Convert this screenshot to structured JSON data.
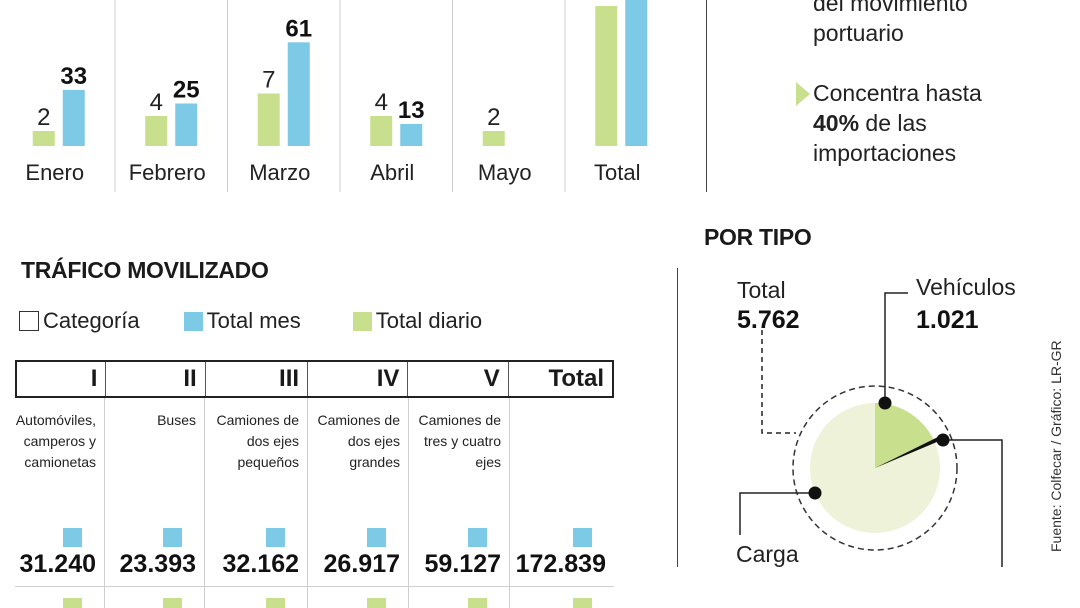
{
  "colors": {
    "green": "#c8df8d",
    "blue": "#7ccae5",
    "pie_fill": "#eef2d8",
    "pie_slice": "#c8df8d"
  },
  "monthly_chart": {
    "type": "bar",
    "categories": [
      "Enero",
      "Febrero",
      "Marzo",
      "Abril",
      "Mayo",
      "Total"
    ],
    "series": [
      {
        "values": [
          2,
          4,
          7,
          4,
          2,
          null
        ],
        "color": "#c8df8d"
      },
      {
        "values": [
          33,
          25,
          61,
          13,
          null,
          null
        ],
        "color": "#7ccae5"
      }
    ]
  },
  "bullets": {
    "item1": {
      "lines": [
        "del movimiento",
        "portuario"
      ]
    },
    "item2": {
      "line1": "Concentra hasta",
      "bold": "40%",
      "line2_rest": " de las",
      "line3": "importaciones"
    }
  },
  "traffic": {
    "title": "TRÁFICO MOVILIZADO",
    "legend": {
      "category": "Categoría",
      "monthly": "Total mes",
      "daily": "Total diario"
    },
    "chart_data": {
      "type": "table",
      "columns": [
        {
          "header": "I",
          "description": "Automóviles, camperos y camionetas",
          "total_mes": "31.240"
        },
        {
          "header": "II",
          "description": "Buses",
          "total_mes": "23.393"
        },
        {
          "header": "III",
          "description": "Camiones de dos ejes pequeños",
          "total_mes": "32.162"
        },
        {
          "header": "IV",
          "description": "Camiones de dos ejes grandes",
          "total_mes": "26.917"
        },
        {
          "header": "V",
          "description": "Camiones de tres y cuatro ejes",
          "total_mes": "59.127"
        },
        {
          "header": "Total",
          "description": "",
          "total_mes": "172.839"
        }
      ]
    }
  },
  "por_tipo": {
    "title": "POR TIPO",
    "chart_data": {
      "type": "pie",
      "total_label": "Total",
      "total_value": "5.762",
      "total": 5762,
      "slices": [
        {
          "label": "Vehículos",
          "value_text": "1.021",
          "value": 1021
        },
        {
          "label": "Carga"
        }
      ]
    }
  },
  "source": "Fuente: Colfecar / Gráfico: LR-GR"
}
